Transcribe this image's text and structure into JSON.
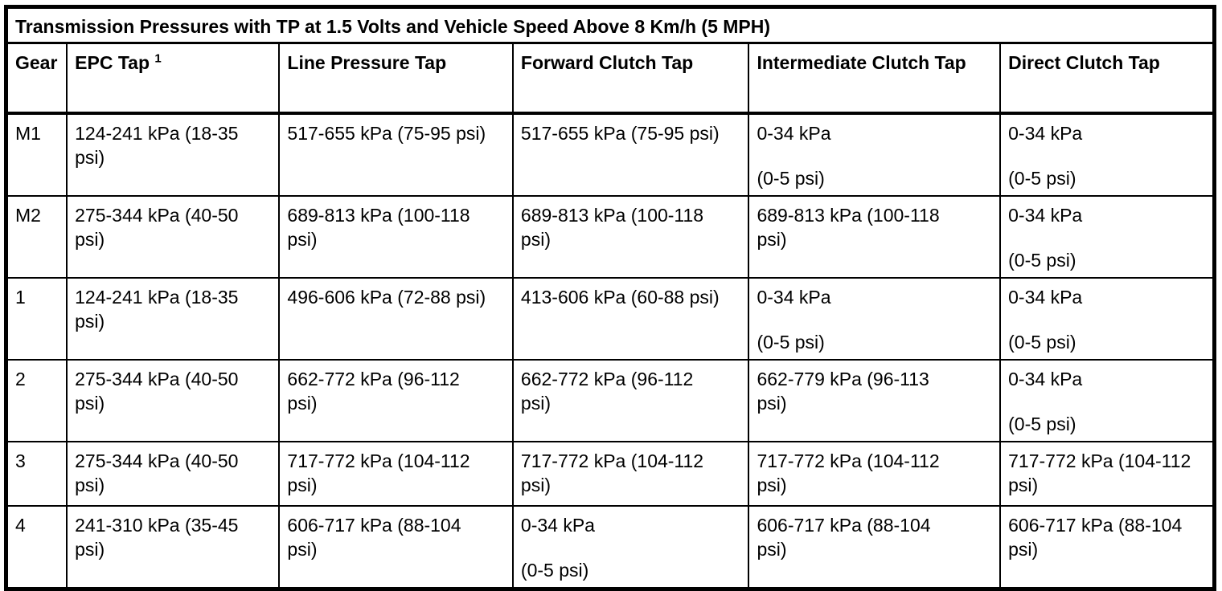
{
  "table": {
    "title": "Transmission Pressures with TP at 1.5 Volts and Vehicle Speed Above 8 Km/h (5 MPH)",
    "columns": [
      {
        "label": "Gear",
        "footnote": ""
      },
      {
        "label": "EPC Tap",
        "footnote": "1"
      },
      {
        "label": "Line Pressure Tap",
        "footnote": ""
      },
      {
        "label": "Forward Clutch Tap",
        "footnote": ""
      },
      {
        "label": "Intermediate Clutch Tap",
        "footnote": ""
      },
      {
        "label": "Direct Clutch Tap",
        "footnote": ""
      }
    ],
    "rows": [
      {
        "gear": "M1",
        "cells": [
          [
            "124-241 kPa (18-35 psi)"
          ],
          [
            "517-655 kPa (75-95 psi)"
          ],
          [
            "517-655 kPa (75-95 psi)"
          ],
          [
            "0-34 kPa",
            "(0-5 psi)"
          ],
          [
            "0-34 kPa",
            "(0-5 psi)"
          ]
        ]
      },
      {
        "gear": "M2",
        "cells": [
          [
            "275-344 kPa (40-50 psi)"
          ],
          [
            "689-813 kPa (100-118 psi)"
          ],
          [
            "689-813 kPa (100-118 psi)"
          ],
          [
            "689-813 kPa (100-118 psi)"
          ],
          [
            "0-34 kPa",
            "(0-5 psi)"
          ]
        ]
      },
      {
        "gear": "1",
        "cells": [
          [
            "124-241 kPa (18-35 psi)"
          ],
          [
            "496-606 kPa (72-88 psi)"
          ],
          [
            "413-606 kPa (60-88 psi)"
          ],
          [
            "0-34 kPa",
            "(0-5 psi)"
          ],
          [
            "0-34 kPa",
            "(0-5 psi)"
          ]
        ]
      },
      {
        "gear": "2",
        "cells": [
          [
            "275-344 kPa (40-50 psi)"
          ],
          [
            "662-772 kPa (96-112 psi)"
          ],
          [
            "662-772 kPa (96-112 psi)"
          ],
          [
            "662-779 kPa (96-113 psi)"
          ],
          [
            "0-34 kPa",
            "(0-5 psi)"
          ]
        ]
      },
      {
        "gear": "3",
        "cells": [
          [
            "275-344 kPa (40-50 psi)"
          ],
          [
            "717-772 kPa (104-112 psi)"
          ],
          [
            "717-772 kPa (104-112 psi)"
          ],
          [
            "717-772 kPa (104-112 psi)"
          ],
          [
            "717-772 kPa (104-112 psi)"
          ]
        ]
      },
      {
        "gear": "4",
        "cells": [
          [
            "241-310 kPa (35-45 psi)"
          ],
          [
            "606-717 kPa (88-104 psi)"
          ],
          [
            "0-34 kPa",
            "(0-5 psi)"
          ],
          [
            "606-717 kPa (88-104 psi)"
          ],
          [
            "606-717 kPa (88-104 psi)"
          ]
        ]
      }
    ],
    "colors": {
      "border": "#000000",
      "background": "#ffffff",
      "text": "#000000"
    }
  }
}
